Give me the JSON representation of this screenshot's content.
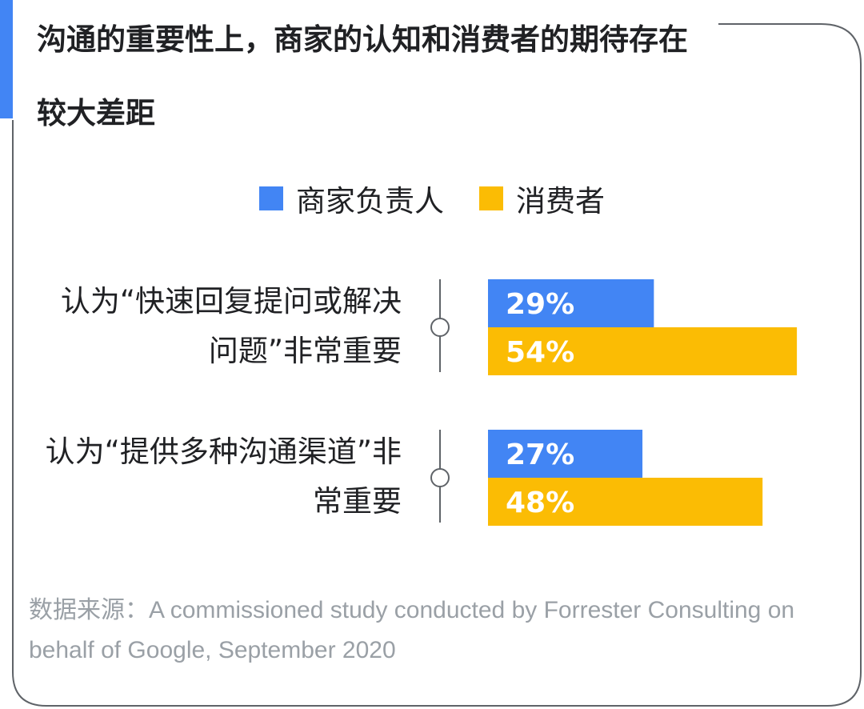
{
  "title": "沟通的重要性上，商家的认知和消费者的期待存在较大差距",
  "source": "数据来源：A commissioned study conducted by Forrester Consulting on behalf of Google, September 2020",
  "colors": {
    "accent": "#4285f4",
    "frame": "#5f6368",
    "text": "#202124",
    "muted": "#9aa0a6"
  },
  "chart_data": {
    "type": "bar",
    "orientation": "horizontal",
    "categories": [
      "认为“快速回复提问或解决问题”非常重要",
      "认为“提供多种沟通渠道”非常重要"
    ],
    "series": [
      {
        "name": "商家负责人",
        "values": [
          29,
          27
        ],
        "color": "#4285f4"
      },
      {
        "name": "消费者",
        "values": [
          54,
          48
        ],
        "color": "#fbbc04"
      }
    ],
    "unit": "%",
    "legend": "top-center",
    "grid": false
  }
}
